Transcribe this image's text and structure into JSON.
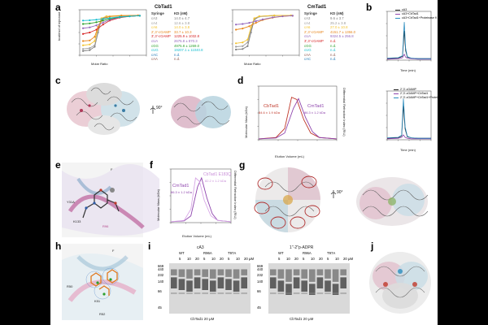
{
  "panel_letters": [
    "a",
    "b",
    "c",
    "d",
    "e",
    "f",
    "g",
    "h",
    "i",
    "j"
  ],
  "panel_a": {
    "left": {
      "title": "CbTad1",
      "col_headers": [
        "Syringe",
        "KD (nM)"
      ],
      "rows": [
        {
          "name": "cA3",
          "kd": "14.0 ± 4.7",
          "color": "#7f7f7f"
        },
        {
          "name": "cA4",
          "kd": "12.6 ± 3.8",
          "color": "#9b9b9b"
        },
        {
          "name": "cA6",
          "kd": "14.0 ± 3.8",
          "color": "#f4c430"
        },
        {
          "name": "2',3'-cGAMP",
          "kd": "33.7 ± 10.3",
          "color": "#e8871e"
        },
        {
          "name": "3',3'-cGAMP",
          "kd": "1225.9 ± 1032.8",
          "color": "#d62728"
        },
        {
          "name": "cUA",
          "kd": "2675.8 ± 870.3",
          "color": "#9467bd"
        },
        {
          "name": "cGG",
          "kd": "4975.8 ± 1269.0",
          "color": "#2ca02c"
        },
        {
          "name": "cUG",
          "kd": "19207.1 ± 11040.8",
          "color": "#17becf"
        },
        {
          "name": "cAC",
          "kd": "n.d.",
          "color": "#1f77b4"
        },
        {
          "name": "cAA",
          "kd": "n.d.",
          "color": "#8c564b"
        }
      ],
      "xlabel": "Molar Ratio",
      "ylabel": "kcal/mol of injectant",
      "chart_data": {
        "type": "line",
        "xlabel": "Molar Ratio",
        "xlim": [
          0,
          4
        ],
        "ylim": [
          -14,
          2
        ],
        "series": [
          {
            "name": "cA3",
            "color": "#7f7f7f",
            "x": [
              0.2,
              0.6,
              0.9,
              1.1,
              1.3,
              1.6,
              2.5,
              3.5
            ],
            "y": [
              -12.5,
              -12.2,
              -11.0,
              -6.0,
              -1.5,
              -0.4,
              -0.1,
              0
            ]
          },
          {
            "name": "cA4",
            "color": "#9b9b9b",
            "x": [
              0.2,
              0.6,
              0.9,
              1.1,
              1.3,
              1.6,
              2.5,
              3.5
            ],
            "y": [
              -11.8,
              -11.5,
              -10.5,
              -5.5,
              -1.2,
              -0.3,
              -0.1,
              0
            ]
          },
          {
            "name": "cA6",
            "color": "#f4c430",
            "x": [
              0.2,
              0.6,
              0.9,
              1.1,
              1.3,
              1.6,
              2.5,
              3.5
            ],
            "y": [
              -10.5,
              -10.2,
              -9.0,
              -4.5,
              -1.0,
              -0.3,
              0,
              0
            ]
          },
          {
            "name": "2',3'-cGAMP",
            "color": "#e8871e",
            "x": [
              0.2,
              0.6,
              0.9,
              1.1,
              1.4,
              1.8,
              2.5,
              3.5
            ],
            "y": [
              -9.0,
              -8.8,
              -7.5,
              -4.0,
              -1.2,
              -0.4,
              -0.1,
              0
            ]
          },
          {
            "name": "3',3'-cGAMP",
            "color": "#d62728",
            "x": [
              0.2,
              0.6,
              1.0,
              1.4,
              1.8,
              2.4,
              3.0,
              3.6
            ],
            "y": [
              -6.5,
              -6.0,
              -5.0,
              -3.2,
              -1.8,
              -0.8,
              -0.3,
              -0.1
            ]
          },
          {
            "name": "cUA",
            "color": "#9467bd",
            "x": [
              0.2,
              0.6,
              1.0,
              1.4,
              1.8,
              2.4,
              3.0,
              3.6
            ],
            "y": [
              -4.5,
              -4.2,
              -3.5,
              -2.5,
              -1.5,
              -0.7,
              -0.3,
              -0.1
            ]
          },
          {
            "name": "cGG",
            "color": "#2ca02c",
            "x": [
              0.2,
              0.6,
              1.0,
              1.4,
              1.8,
              2.4,
              3.0,
              3.6
            ],
            "y": [
              -3.0,
              -2.8,
              -2.4,
              -1.8,
              -1.2,
              -0.6,
              -0.3,
              -0.1
            ]
          },
          {
            "name": "cUG",
            "color": "#17becf",
            "x": [
              0.2,
              0.6,
              1.0,
              1.4,
              1.8,
              2.4,
              3.0,
              3.6
            ],
            "y": [
              -1.8,
              -1.7,
              -1.5,
              -1.2,
              -0.9,
              -0.5,
              -0.3,
              -0.1
            ]
          }
        ]
      }
    },
    "right": {
      "title": "CmTad1",
      "col_headers": [
        "Syringe",
        "KD (nM)"
      ],
      "rows": [
        {
          "name": "cA3",
          "kd": "9.6 ± 3.7",
          "color": "#7f7f7f"
        },
        {
          "name": "cA4",
          "kd": "25.2 ± 3.8",
          "color": "#9b9b9b"
        },
        {
          "name": "cA6",
          "kd": "27.0 ± 10.8",
          "color": "#f4c430"
        },
        {
          "name": "2',3'-cGAMP",
          "kd": "4151.7 ± 1356.0",
          "color": "#e8871e"
        },
        {
          "name": "cUA",
          "kd": "9324.5 ± 256.8",
          "color": "#9467bd"
        },
        {
          "name": "3',3'-cGAMP",
          "kd": "n.d.",
          "color": "#d62728"
        },
        {
          "name": "cGG",
          "kd": "n.d.",
          "color": "#2ca02c"
        },
        {
          "name": "cUG",
          "kd": "n.d.",
          "color": "#17becf"
        },
        {
          "name": "cAA",
          "kd": "n.d.",
          "color": "#8c564b"
        },
        {
          "name": "cAC",
          "kd": "n.d.",
          "color": "#1f77b4"
        }
      ],
      "xlabel": "Molar Ratio",
      "chart_data": {
        "type": "line",
        "xlabel": "Molar Ratio",
        "xlim": [
          0,
          4
        ],
        "ylim": [
          -14,
          2
        ],
        "series": [
          {
            "name": "cA3",
            "color": "#7f7f7f",
            "x": [
              0.2,
              0.6,
              0.9,
              1.1,
              1.3,
              1.6,
              2.5,
              3.5
            ],
            "y": [
              -12.0,
              -11.8,
              -10.8,
              -6.0,
              -1.5,
              -0.4,
              -0.1,
              0
            ]
          },
          {
            "name": "cA4",
            "color": "#9b9b9b",
            "x": [
              0.2,
              0.6,
              0.9,
              1.1,
              1.3,
              1.6,
              2.5,
              3.5
            ],
            "y": [
              -11.0,
              -10.8,
              -9.5,
              -5.0,
              -1.2,
              -0.3,
              0,
              0
            ]
          },
          {
            "name": "cA6",
            "color": "#f4c430",
            "x": [
              0.2,
              0.6,
              0.9,
              1.1,
              1.3,
              1.6,
              2.5,
              3.5
            ],
            "y": [
              -9.8,
              -9.5,
              -8.5,
              -4.2,
              -1.0,
              -0.3,
              0,
              0
            ]
          },
          {
            "name": "2',3'-cGAMP",
            "color": "#e8871e",
            "x": [
              0.2,
              0.6,
              1.0,
              1.4,
              1.8,
              2.4,
              3.0,
              3.6
            ],
            "y": [
              -5.0,
              -4.6,
              -3.8,
              -2.6,
              -1.6,
              -0.8,
              -0.3,
              -0.1
            ]
          },
          {
            "name": "cUA",
            "color": "#9467bd",
            "x": [
              0.2,
              0.6,
              1.0,
              1.4,
              1.8,
              2.4,
              3.0,
              3.6
            ],
            "y": [
              -3.2,
              -3.0,
              -2.6,
              -2.0,
              -1.4,
              -0.7,
              -0.3,
              -0.1
            ]
          }
        ]
      }
    }
  },
  "panel_b": {
    "top": {
      "legend": [
        "cA3",
        "cA3+CbTad1",
        "cA3+CbTad1+Proteinase K"
      ],
      "xlabel": "Time (min)",
      "ylabel": "UV Absorbance (mAU)",
      "chart_data": {
        "type": "line",
        "xlim": [
          0,
          10
        ],
        "ylim": [
          0,
          100
        ],
        "series": [
          {
            "name": "cA3",
            "color": "#1f1f1f",
            "x": [
              0,
              2.5,
              3.5,
              3.9,
              4.2,
              4.6,
              5.5,
              7,
              10
            ],
            "y": [
              3,
              4,
              8,
              60,
              20,
              6,
              4,
              3,
              3
            ]
          },
          {
            "name": "cA3+CbTad1",
            "color": "#8e44ad",
            "x": [
              0,
              2.5,
              3.5,
              3.9,
              4.2,
              4.6,
              5.5,
              7,
              10
            ],
            "y": [
              2,
              3,
              5,
              12,
              6,
              4,
              3,
              2,
              2
            ]
          },
          {
            "name": "cA3+CbTad1+Proteinase K",
            "color": "#2b8cbe",
            "x": [
              0,
              2.5,
              3.5,
              3.9,
              4.2,
              4.6,
              5.5,
              7,
              10
            ],
            "y": [
              4,
              5,
              9,
              78,
              25,
              7,
              4,
              3,
              3
            ]
          }
        ]
      }
    },
    "bottom": {
      "legend": [
        "2',3'-cGAMP",
        "2',3'-cGAMP+CbTad1",
        "2',3'-cGAMP+CbTad1+Proteinase K"
      ],
      "xlabel": "Time (min)",
      "ylabel": "UV Absorbance (mAU)",
      "chart_data": {
        "type": "line",
        "xlim": [
          0,
          10
        ],
        "ylim": [
          0,
          100
        ],
        "series": [
          {
            "name": "2',3'-cGAMP",
            "color": "#1f1f1f",
            "x": [
              0,
              2.5,
              3.3,
              3.7,
              4.1,
              4.6,
              5.5,
              7,
              10
            ],
            "y": [
              3,
              4,
              8,
              70,
              22,
              6,
              4,
              3,
              3
            ]
          },
          {
            "name": "2',3'-cGAMP+CbTad1",
            "color": "#8e44ad",
            "x": [
              0,
              2.5,
              3.3,
              3.7,
              4.1,
              4.6,
              5.5,
              7,
              10
            ],
            "y": [
              2,
              3,
              5,
              10,
              5,
              3,
              2,
              2,
              2
            ]
          },
          {
            "name": "2',3'-cGAMP+CbTad1+Proteinase K",
            "color": "#2b8cbe",
            "x": [
              0,
              2.5,
              3.3,
              3.7,
              4.1,
              4.6,
              5.5,
              7,
              10
            ],
            "y": [
              4,
              5,
              9,
              84,
              26,
              7,
              4,
              3,
              3
            ]
          }
        ]
      }
    }
  },
  "panel_c": {
    "rotation_label": "90°"
  },
  "panel_d": {
    "labels": [
      "CbTad1",
      "CmTad1"
    ],
    "mass_labels": [
      "84.6 ± 1.9 kDa",
      "86.3 ± 1.2 kDa"
    ],
    "xlabel": "Elution Volume (mL)",
    "ylabel_left": "Molecular Mass (kDa)",
    "ylabel_right": "Differential Refractive Index (RIU)",
    "chart_data": {
      "type": "line",
      "xlim": [
        10,
        19
      ],
      "ylim": [
        0,
        1.2
      ],
      "series": [
        {
          "name": "CbTad1",
          "color": "#c0392b",
          "x": [
            10,
            12,
            13,
            13.8,
            14.4,
            15.2,
            16,
            17,
            19
          ],
          "y": [
            0.02,
            0.05,
            0.25,
            0.95,
            0.9,
            0.45,
            0.15,
            0.05,
            0.02
          ]
        },
        {
          "name": "CmTad1",
          "color": "#8e44ad",
          "x": [
            10,
            12,
            13,
            14,
            14.6,
            15.4,
            16.2,
            17,
            19
          ],
          "y": [
            0.02,
            0.04,
            0.15,
            0.7,
            0.92,
            0.5,
            0.18,
            0.05,
            0.02
          ]
        }
      ]
    }
  },
  "panel_f": {
    "labels": [
      "CmTad1",
      "CbTad1 E183Q"
    ],
    "mass_labels": [
      "86.3 ± 1.2 kDa",
      "82.2 ± 1.2 kDa"
    ],
    "xlabel": "Elution Volume (mL)",
    "ylabel_left": "Molecular Mass (kDa)",
    "ylabel_right": "Differential Refractive Index (RIU)",
    "chart_data": {
      "type": "line",
      "xlim": [
        10,
        19
      ],
      "ylim": [
        0,
        1.2
      ],
      "series": [
        {
          "name": "CmTad1",
          "color": "#8e44ad",
          "x": [
            10,
            12,
            13,
            14,
            14.6,
            15.4,
            16.2,
            17,
            19
          ],
          "y": [
            0.02,
            0.04,
            0.15,
            0.8,
            1.0,
            0.55,
            0.2,
            0.05,
            0.02
          ]
        },
        {
          "name": "CbTad1 E183Q",
          "color": "#d7a6e6",
          "x": [
            10,
            12,
            13,
            13.7,
            14.3,
            15.0,
            16,
            17,
            19
          ],
          "y": [
            0.02,
            0.05,
            0.3,
            1.0,
            0.92,
            0.5,
            0.15,
            0.05,
            0.02
          ]
        }
      ]
    }
  },
  "panel_e": {
    "residues": [
      "F",
      "Y31A",
      "R96",
      "K133"
    ]
  },
  "panel_h": {
    "residues": [
      "F",
      "R50",
      "K51",
      "R52"
    ]
  },
  "panel_i": {
    "left": {
      "title": "cA3",
      "groups": [
        "WT",
        "R96A",
        "T97A"
      ],
      "conc_labels": [
        "5",
        "10",
        "20",
        "5",
        "10",
        "20",
        "5",
        "10",
        "20"
      ],
      "unit": "µM",
      "caption": "CbTad1 20 µM",
      "markers": [
        {
          "label": "669",
          "y": 0.02
        },
        {
          "label": "440",
          "y": 0.08
        },
        {
          "label": "232",
          "y": 0.2
        },
        {
          "label": "140",
          "y": 0.35
        },
        {
          "label": "66",
          "y": 0.55
        },
        {
          "label": "45",
          "y": 0.9
        }
      ]
    },
    "right": {
      "title": "1''-2''p-ADPR",
      "groups": [
        "WT",
        "R96A",
        "T97A"
      ],
      "conc_labels": [
        "5",
        "10",
        "20",
        "5",
        "10",
        "20",
        "5",
        "10",
        "20"
      ],
      "unit": "µM",
      "caption": "CbTad1 20 µM",
      "markers": [
        {
          "label": "669",
          "y": 0.02
        },
        {
          "label": "440",
          "y": 0.08
        },
        {
          "label": "232",
          "y": 0.2
        },
        {
          "label": "140",
          "y": 0.35
        },
        {
          "label": "66",
          "y": 0.55
        },
        {
          "label": "45",
          "y": 0.9
        }
      ]
    }
  },
  "panel_g": {
    "rotation_label": "90°"
  },
  "panel_j": {}
}
